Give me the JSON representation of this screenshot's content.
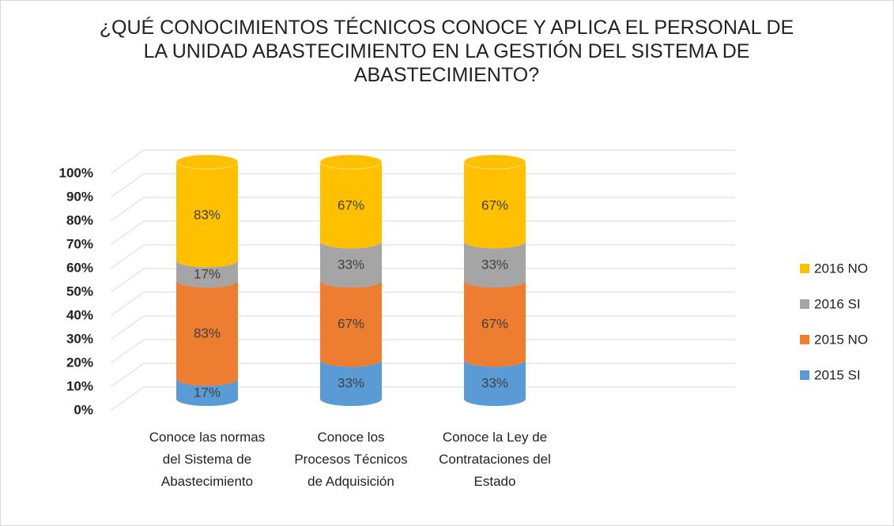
{
  "chart_data": {
    "type": "bar",
    "stacking": "percent",
    "title": "¿QUÉ CONOCIMIENTOS TÉCNICOS CONOCE Y APLICA EL PERSONAL DE LA UNIDAD ABASTECIMIENTO EN LA GESTIÓN DEL SISTEMA DE ABASTECIMIENTO?",
    "categories": [
      "Conoce las normas del Sistema de Abastecimiento",
      "Conoce los Procesos Técnicos de Adquisición",
      "Conoce la Ley de Contrataciones del Estado"
    ],
    "series": [
      {
        "name": "2015 SI",
        "color": "#5b9bd5",
        "values": [
          17,
          33,
          33
        ],
        "value_labels": [
          "17%",
          "33%",
          "33%"
        ]
      },
      {
        "name": "2015 NO",
        "color": "#ed7d31",
        "values": [
          83,
          67,
          67
        ],
        "value_labels": [
          "83%",
          "67%",
          "67%"
        ]
      },
      {
        "name": "2016 SI",
        "color": "#a5a5a5",
        "values": [
          17,
          33,
          33
        ],
        "value_labels": [
          "17%",
          "33%",
          "33%"
        ]
      },
      {
        "name": "2016 NO",
        "color": "#ffc000",
        "values": [
          83,
          67,
          67
        ],
        "value_labels": [
          "83%",
          "67%",
          "67%"
        ]
      }
    ],
    "ylim": [
      0,
      100
    ],
    "yticks": [
      {
        "value": 0,
        "label": "0%"
      },
      {
        "value": 10,
        "label": "10%"
      },
      {
        "value": 20,
        "label": "20%"
      },
      {
        "value": 30,
        "label": "30%"
      },
      {
        "value": 40,
        "label": "40%"
      },
      {
        "value": 50,
        "label": "50%"
      },
      {
        "value": 60,
        "label": "60%"
      },
      {
        "value": 70,
        "label": "70%"
      },
      {
        "value": 80,
        "label": "80%"
      },
      {
        "value": 90,
        "label": "90%"
      },
      {
        "value": 100,
        "label": "100%"
      }
    ],
    "grid": true,
    "legend": "right"
  }
}
